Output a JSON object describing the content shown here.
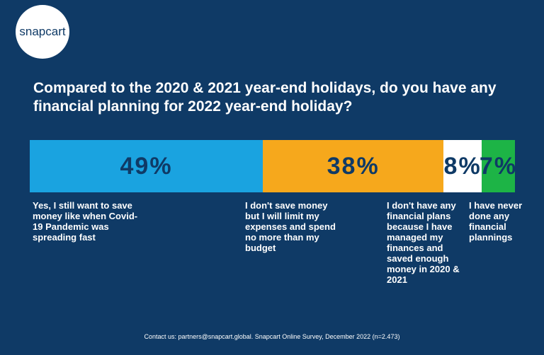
{
  "logo": "snapcart",
  "chart_data": {
    "type": "stacked-bar",
    "title": "Compared to the 2020 & 2021 year-end holidays, do you have any financial planning for 2022 year-end holiday?",
    "series": [
      {
        "name": "Yes, I still want to save money like when Covid-19 Pandemic was spreading fast",
        "color": "#1aa3e0",
        "values": [
          49
        ],
        "value_labels": [
          "49%"
        ]
      },
      {
        "name": "I don't save money but I will limit my expenses and spend no more than my budget",
        "color": "#f6a81c",
        "values": [
          38
        ],
        "value_labels": [
          "38%"
        ]
      },
      {
        "name": "I don't have any financial plans because I have managed my finances and saved enough money in 2020 & 2021",
        "color": "#ffffff",
        "values": [
          8
        ],
        "value_labels": [
          "8%"
        ]
      },
      {
        "name": "I have never done any financial plannings",
        "color": "#1db446",
        "values": [
          7
        ],
        "value_labels": [
          "7%"
        ]
      }
    ]
  },
  "footer": "Contact us: partners@snapcart.global. Snapcart Online Survey, December 2022 (n=2.473)"
}
